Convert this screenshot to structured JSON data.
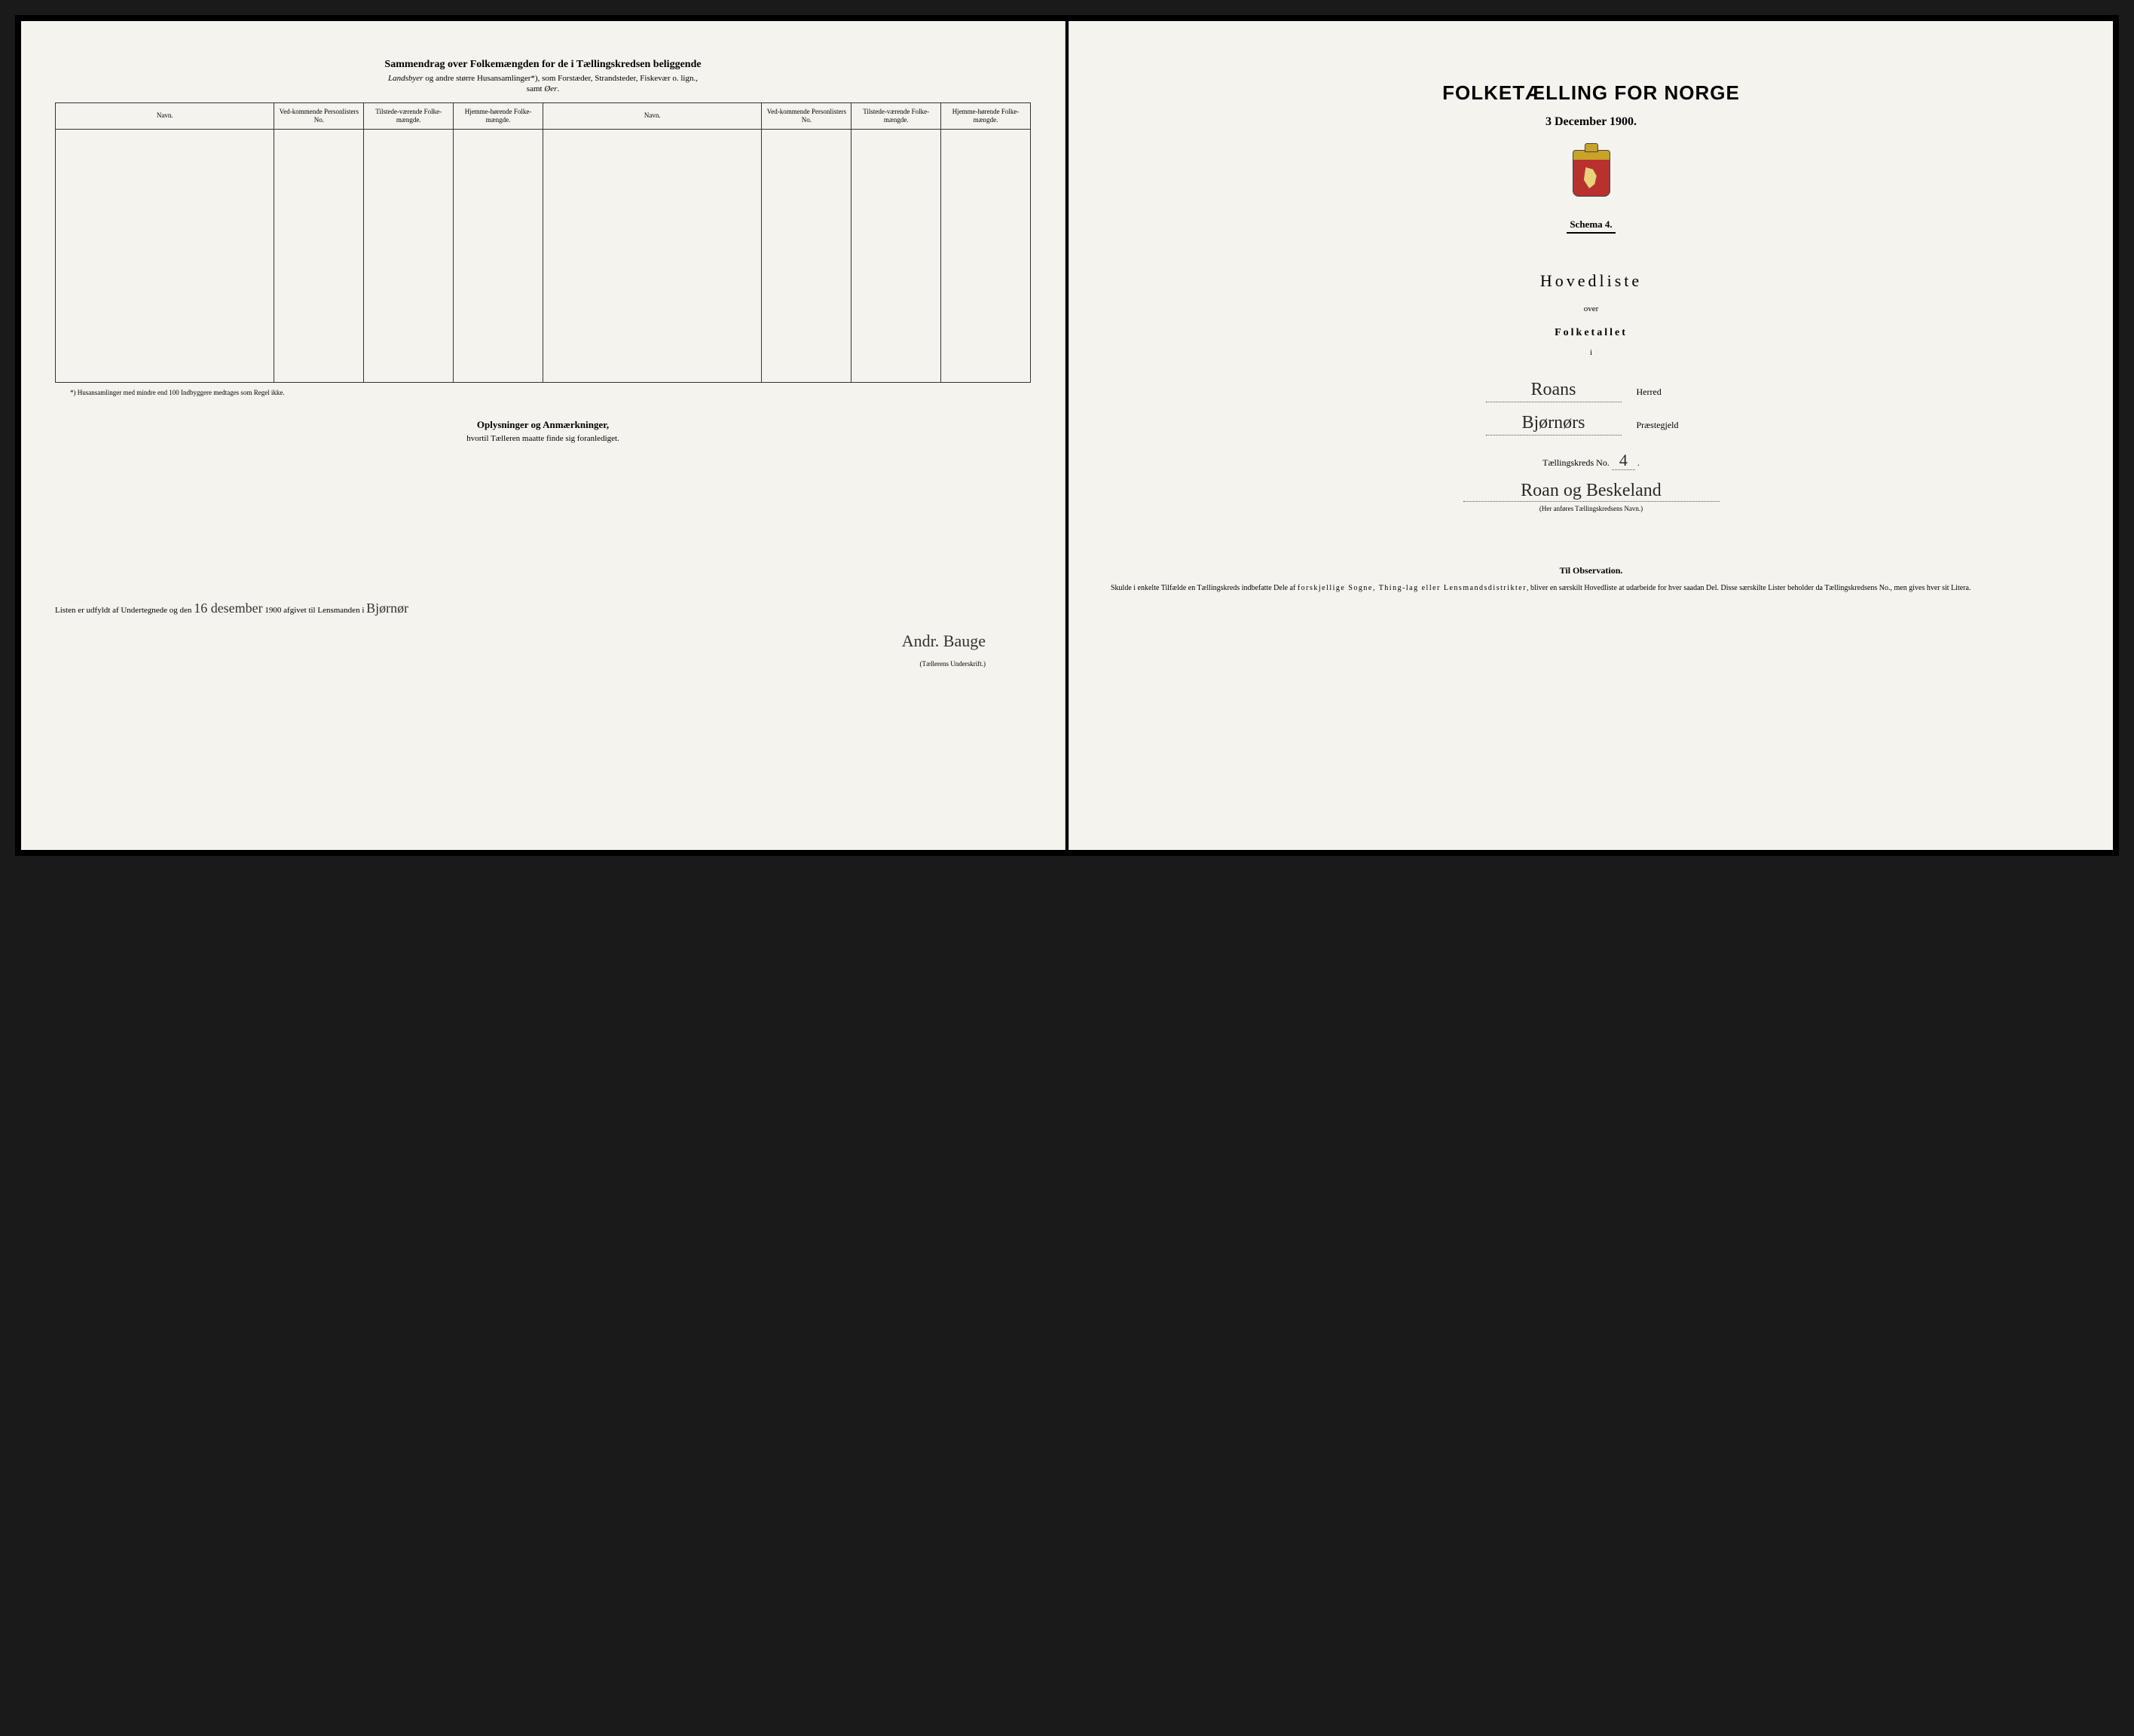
{
  "left": {
    "title": "Sammendrag over Folkemængden for de i Tællingskredsen beliggende",
    "subtitle_prefix": "Landsbyer",
    "subtitle_rest": " og andre større Husansamlinger*), som Forstæder, Strandsteder, Fiskevær o. lign.,",
    "samt": "samt Øer.",
    "columns": [
      "Navn.",
      "Ved-kommende Personlisters No.",
      "Tilstede-værende Folke-mængde.",
      "Hjemme-hørende Folke-mængde.",
      "Navn.",
      "Ved-kommende Personlisters No.",
      "Tilstede-værende Folke-mængde.",
      "Hjemme-hørende Folke-mængde."
    ],
    "footnote": "*) Husansamlinger med mindre end 100 Indbyggere medtages som Regel ikke.",
    "oplysninger_title": "Oplysninger og Anmærkninger,",
    "oplysninger_sub": "hvortil Tælleren maatte finde sig foranlediget.",
    "sig_prefix": "Listen er udfyldt af Undertegnede og den ",
    "sig_date_hw": "16 desember",
    "sig_mid": " 1900 afgivet til Lensmanden i ",
    "sig_place_hw": "Bjørnør",
    "sig_name_hw": "Andr. Bauge",
    "sig_caption": "(Tællerens Underskrift.)"
  },
  "right": {
    "main_title": "FOLKETÆLLING FOR NORGE",
    "date": "3 December 1900.",
    "schema": "Schema 4.",
    "hovedliste": "Hovedliste",
    "over": "over",
    "folketallet": "Folketallet",
    "i": "i",
    "herred_hw": "Roans",
    "herred_label": "Herred",
    "praeste_hw": "Bjørnørs",
    "praeste_label": "Præstegjeld",
    "kreds_label_pre": "Tællingskreds No. ",
    "kreds_no_hw": "4",
    "kreds_name_hw": "Roan og Beskeland",
    "kreds_caption": "(Her anføres Tællingskredsens Navn.)",
    "obs_title": "Til Observation.",
    "obs_body_1": "Skulde i enkelte Tilfælde en Tællingskreds indbefatte Dele af ",
    "obs_body_spaced": "forskjellige Sogne, Thing-lag eller Lensmandsdistrikter",
    "obs_body_2": ", bliver en særskilt Hovedliste at udarbeide for hver saadan Del. Disse særskilte Lister beholder da Tællingskredsens No., men gives hver sit Litera."
  },
  "colors": {
    "paper": "#f5f3ed",
    "ink": "#1a1a1a",
    "border": "#333333"
  }
}
